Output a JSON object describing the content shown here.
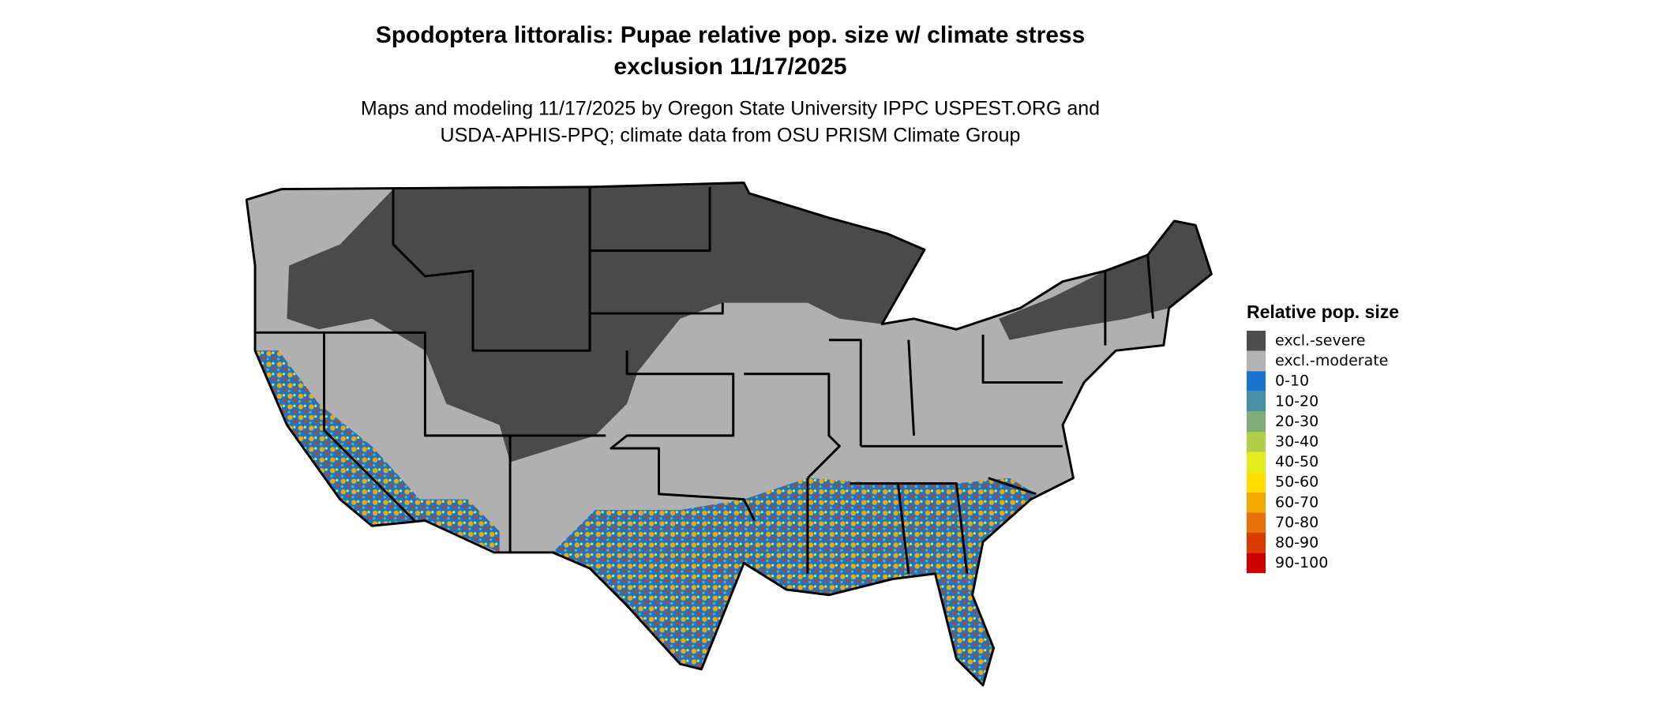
{
  "title_lines": [
    "Spodoptera littoralis: Pupae relative pop. size w/ climate stress",
    "exclusion 11/17/2025"
  ],
  "subtitle_lines": [
    "Maps and modeling 11/17/2025 by Oregon State University IPPC USPEST.ORG and",
    "USDA-APHIS-PPQ; climate data from OSU PRISM Climate Group"
  ],
  "legend": {
    "title": "Relative pop. size",
    "items": [
      {
        "label": "excl.-severe",
        "color": "#4d4d4d"
      },
      {
        "label": "excl.-moderate",
        "color": "#b3b3b3"
      },
      {
        "label": "0-10",
        "color": "#1874cd"
      },
      {
        "label": "10-20",
        "color": "#4a90a4"
      },
      {
        "label": "20-30",
        "color": "#7fad7a"
      },
      {
        "label": "30-40",
        "color": "#b2cf4a"
      },
      {
        "label": "40-50",
        "color": "#e5ec1e"
      },
      {
        "label": "50-60",
        "color": "#ffdd00"
      },
      {
        "label": "60-70",
        "color": "#f2a900"
      },
      {
        "label": "70-80",
        "color": "#e8700a"
      },
      {
        "label": "80-90",
        "color": "#d93b00"
      },
      {
        "label": "90-100",
        "color": "#cc0000"
      }
    ]
  }
}
